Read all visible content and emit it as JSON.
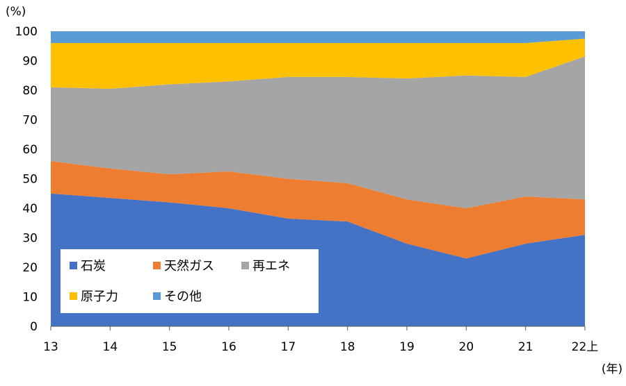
{
  "chart_data": {
    "type": "area",
    "stacked": true,
    "categories": [
      "13",
      "14",
      "15",
      "16",
      "17",
      "18",
      "19",
      "20",
      "21",
      "22上"
    ],
    "series": [
      {
        "name": "石炭",
        "color": "#4472C4",
        "values": [
          45,
          43.5,
          42,
          40,
          36.5,
          35.5,
          28,
          23,
          28,
          31
        ]
      },
      {
        "name": "天然ガス",
        "color": "#ED7D31",
        "values": [
          11,
          10,
          9.5,
          12.5,
          13.5,
          13,
          15,
          17,
          16,
          12
        ]
      },
      {
        "name": "再エネ",
        "color": "#A5A5A5",
        "values": [
          25,
          27,
          30.5,
          30.5,
          34.5,
          36,
          41,
          45,
          40.5,
          48.5
        ]
      },
      {
        "name": "原子力",
        "color": "#FFC000",
        "values": [
          15,
          15.5,
          14,
          13,
          11.5,
          11.5,
          12,
          11,
          11.5,
          6
        ]
      },
      {
        "name": "その他",
        "color": "#5B9BD5",
        "values": [
          4,
          4,
          4,
          4,
          4,
          4,
          4,
          4,
          4,
          2.5
        ]
      }
    ],
    "y_unit": "(%)",
    "x_unit": "(年)",
    "ylim": [
      0,
      100
    ],
    "yticks": [
      0,
      10,
      20,
      30,
      40,
      50,
      60,
      70,
      80,
      90,
      100
    ],
    "grid": false,
    "legend_position": "bottom-left-inside"
  }
}
